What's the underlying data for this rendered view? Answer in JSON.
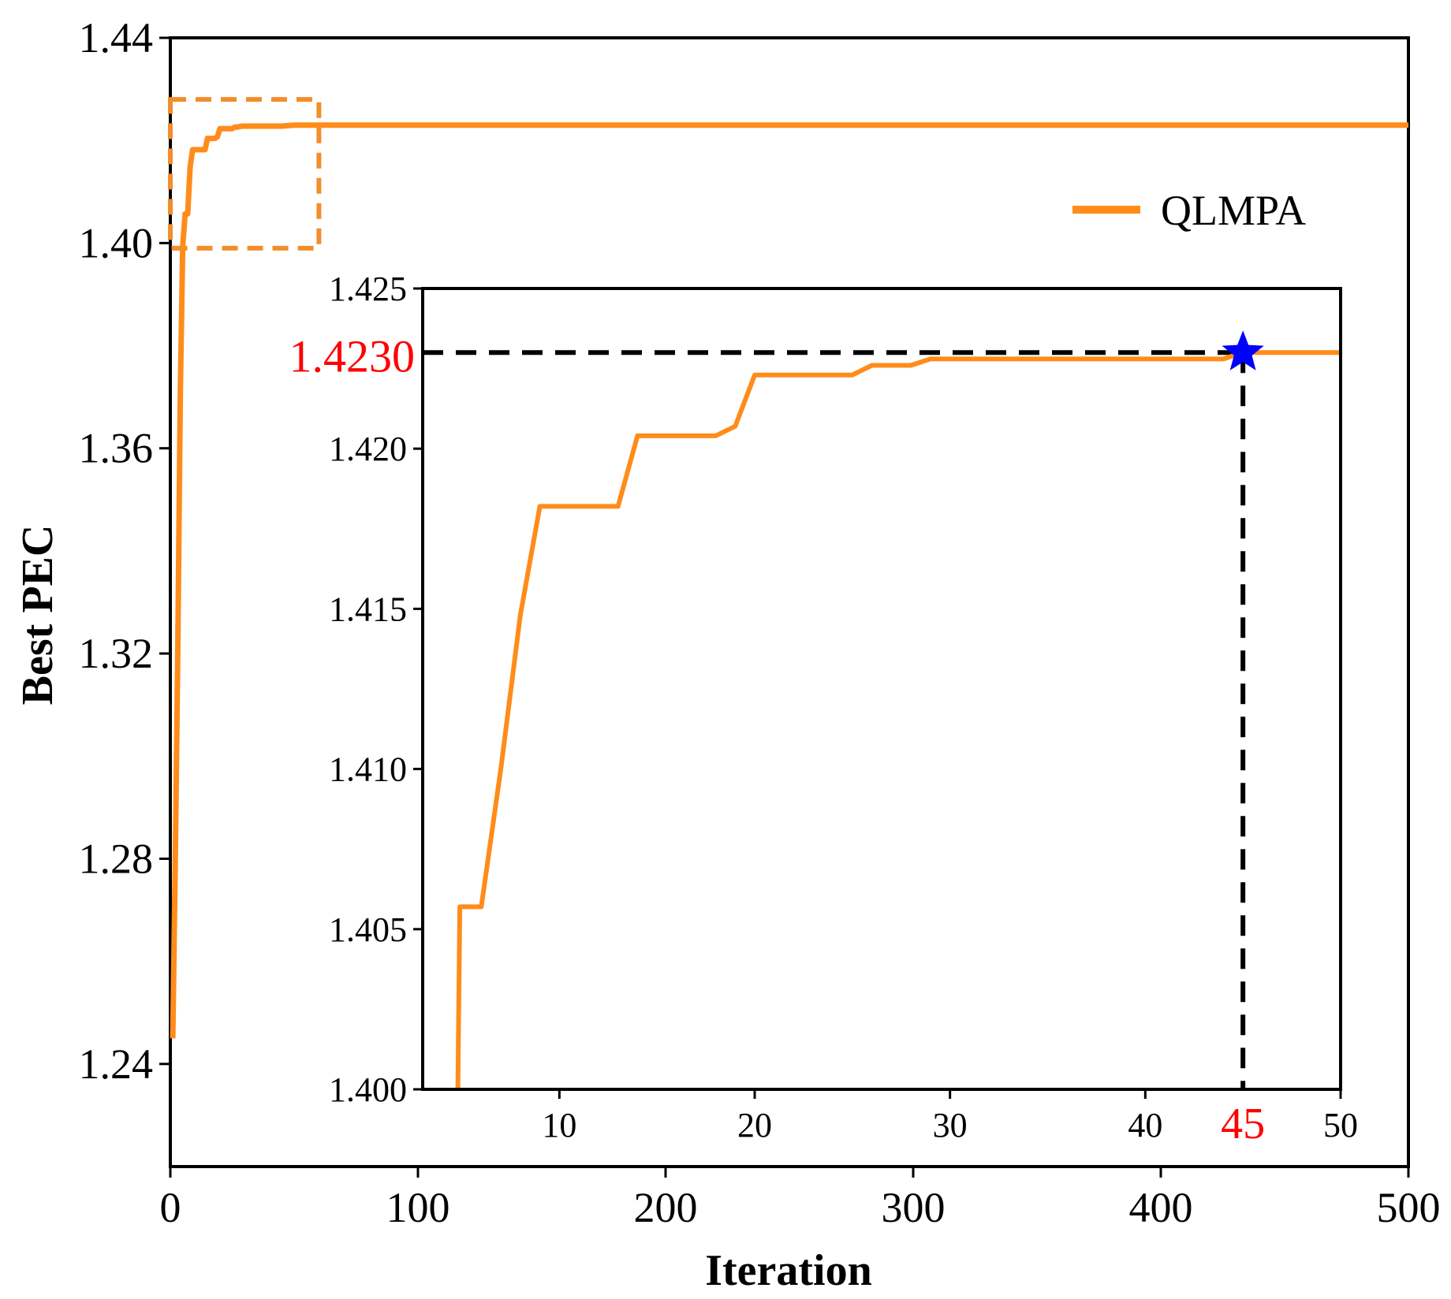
{
  "chart_data": [
    {
      "id": "main",
      "type": "line",
      "title": "",
      "xlabel": "Iteration",
      "ylabel": "Best PEC",
      "xlim": [
        0,
        500
      ],
      "ylim": [
        1.22,
        1.44
      ],
      "xticks": [
        0,
        100,
        200,
        300,
        400,
        500
      ],
      "yticks": [
        1.24,
        1.28,
        1.32,
        1.36,
        1.4,
        1.44
      ],
      "xtick_labels": [
        "0",
        "100",
        "200",
        "300",
        "400",
        "500"
      ],
      "ytick_labels": [
        "1.24",
        "1.28",
        "1.32",
        "1.36",
        "1.40",
        "1.44"
      ],
      "grid": false,
      "legend": {
        "position": "upper-right",
        "entries": [
          {
            "label": "QLMPA",
            "color": "#ff8c1a"
          }
        ]
      },
      "series": [
        {
          "name": "QLMPA",
          "color": "#ff8c1a",
          "x": [
            1,
            2,
            3,
            4,
            5,
            6,
            7,
            8,
            9,
            10,
            11,
            12,
            13,
            14,
            15,
            16,
            18,
            19,
            20,
            25,
            26,
            27,
            28,
            29,
            30,
            45,
            50,
            100,
            500
          ],
          "y": [
            1.245,
            1.28,
            1.32,
            1.37,
            1.3995,
            1.4057,
            1.4057,
            1.4148,
            1.4182,
            1.4182,
            1.4182,
            1.4182,
            1.4182,
            1.4182,
            1.4204,
            1.4204,
            1.4204,
            1.4207,
            1.4223,
            1.4223,
            1.4226,
            1.4226,
            1.4227,
            1.4228,
            1.4228,
            1.4228,
            1.423,
            1.423,
            1.423
          ]
        }
      ],
      "zoom_box": {
        "x_range": [
          0,
          60
        ],
        "y_range": [
          1.399,
          1.428
        ],
        "style": "dashed",
        "color": "#f28e2b"
      }
    },
    {
      "id": "inset",
      "type": "line",
      "xlim": [
        3,
        50
      ],
      "ylim": [
        1.4,
        1.425
      ],
      "xticks": [
        10,
        20,
        30,
        40,
        50
      ],
      "yticks": [
        1.4,
        1.405,
        1.41,
        1.415,
        1.42,
        1.425
      ],
      "xtick_labels": [
        "10",
        "20",
        "30",
        "40",
        "50"
      ],
      "ytick_labels": [
        "1.400",
        "1.405",
        "1.410",
        "1.415",
        "1.420",
        "1.425"
      ],
      "grid": false,
      "series": [
        {
          "name": "QLMPA",
          "color": "#ff8c1a",
          "x": [
            4.8,
            4.9,
            6,
            7,
            8,
            9,
            10,
            11,
            12,
            13,
            14,
            15,
            16,
            17,
            18,
            19,
            20,
            25,
            26,
            27,
            28,
            29,
            30,
            35,
            40,
            44,
            45,
            50
          ],
          "y": [
            1.4,
            1.4057,
            1.4057,
            1.41,
            1.4148,
            1.4182,
            1.4182,
            1.4182,
            1.4182,
            1.4182,
            1.4204,
            1.4204,
            1.4204,
            1.4204,
            1.4204,
            1.4207,
            1.4223,
            1.4223,
            1.4226,
            1.4226,
            1.4226,
            1.4228,
            1.4228,
            1.4228,
            1.4228,
            1.4228,
            1.423,
            1.423
          ]
        }
      ],
      "annotation": {
        "point": {
          "x": 45,
          "y": 1.423,
          "marker": "star",
          "color": "#0000ff"
        },
        "x_label": "45",
        "y_label": "1.4230",
        "label_color": "#ff0000",
        "guide_style": "dashed",
        "guide_color": "#000000"
      }
    }
  ]
}
